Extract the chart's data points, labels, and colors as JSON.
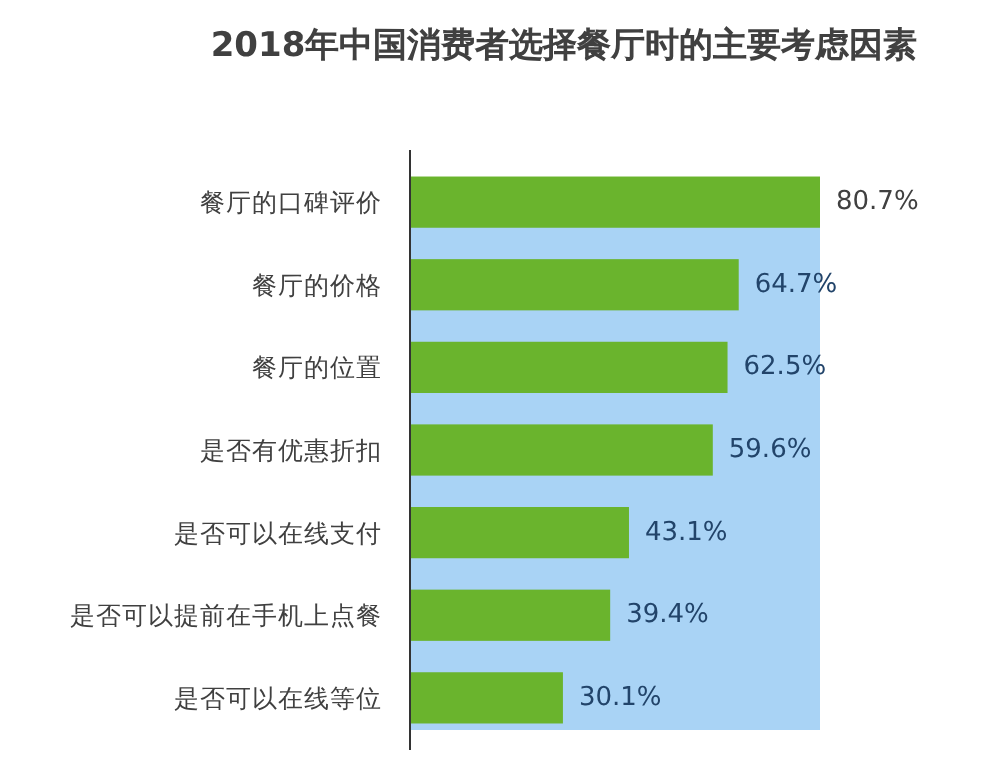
{
  "chart_data": {
    "type": "bar",
    "orientation": "horizontal",
    "title": "2018年中国消费者选择餐厅时的主要考虑因素",
    "categories": [
      "餐厅的口碑评价",
      "餐厅的价格",
      "餐厅的位置",
      "是否有优惠折扣",
      "是否可以在线支付",
      "是否可以提前在手机上点餐",
      "是否可以在线等位"
    ],
    "values": [
      80.7,
      64.7,
      62.5,
      59.6,
      43.1,
      39.4,
      30.1
    ],
    "value_labels": [
      "80.7%",
      "64.7%",
      "62.5%",
      "59.6%",
      "43.1%",
      "39.4%",
      "30.1%"
    ],
    "color": "#6ab42d"
  }
}
